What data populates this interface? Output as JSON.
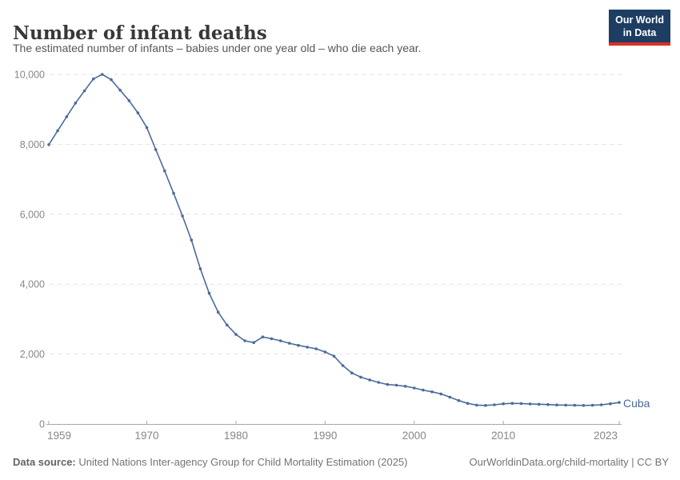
{
  "header": {
    "title": "Number of infant deaths",
    "subtitle": "The estimated number of infants – babies under one year old – who die each year.",
    "logo": {
      "line1": "Our World",
      "line2": "in Data"
    }
  },
  "chart_data": {
    "type": "line",
    "title": "Number of infant deaths",
    "entity": "Cuba",
    "xlim": [
      1959,
      2023
    ],
    "ylim": [
      0,
      10000
    ],
    "x_ticks": [
      1959,
      1970,
      1980,
      1990,
      2000,
      2010,
      2023
    ],
    "y_ticks": [
      0,
      2000,
      4000,
      6000,
      8000,
      10000
    ],
    "grid": "horizontal-dashed",
    "legend_position": "end-of-line",
    "series": [
      {
        "name": "Cuba",
        "color": "#4c6a9c",
        "years": [
          1959,
          1960,
          1961,
          1962,
          1963,
          1964,
          1965,
          1966,
          1967,
          1968,
          1969,
          1970,
          1971,
          1972,
          1973,
          1974,
          1975,
          1976,
          1977,
          1978,
          1979,
          1980,
          1981,
          1982,
          1983,
          1984,
          1985,
          1986,
          1987,
          1988,
          1989,
          1990,
          1991,
          1992,
          1993,
          1994,
          1995,
          1996,
          1997,
          1998,
          1999,
          2000,
          2001,
          2002,
          2003,
          2004,
          2005,
          2006,
          2007,
          2008,
          2009,
          2010,
          2011,
          2012,
          2013,
          2014,
          2015,
          2016,
          2017,
          2018,
          2019,
          2020,
          2021,
          2022,
          2023
        ],
        "values": [
          7990,
          8390,
          8790,
          9180,
          9530,
          9870,
          10000,
          9850,
          9550,
          9250,
          8900,
          8480,
          7850,
          7240,
          6600,
          5950,
          5260,
          4440,
          3740,
          3200,
          2830,
          2560,
          2380,
          2330,
          2490,
          2440,
          2380,
          2310,
          2250,
          2200,
          2150,
          2060,
          1940,
          1670,
          1460,
          1340,
          1260,
          1190,
          1130,
          1110,
          1080,
          1030,
          970,
          920,
          860,
          770,
          670,
          590,
          540,
          530,
          550,
          580,
          590,
          585,
          575,
          565,
          555,
          545,
          540,
          535,
          530,
          535,
          550,
          580,
          615
        ]
      }
    ],
    "end_label": "Cuba"
  },
  "colors": {
    "series": "#4c6a9c",
    "grid": "#e2e2e2",
    "axis_line": "#a8a8a8",
    "axis_text": "#878787",
    "logo_bg": "#1d3d63",
    "logo_red": "#dc2f25"
  },
  "footer": {
    "source_label": "Data source:",
    "source_text": " United Nations Inter-agency Group for Child Mortality Estimation (2025)",
    "link_text": "OurWorldinData.org/child-mortality | CC BY"
  }
}
